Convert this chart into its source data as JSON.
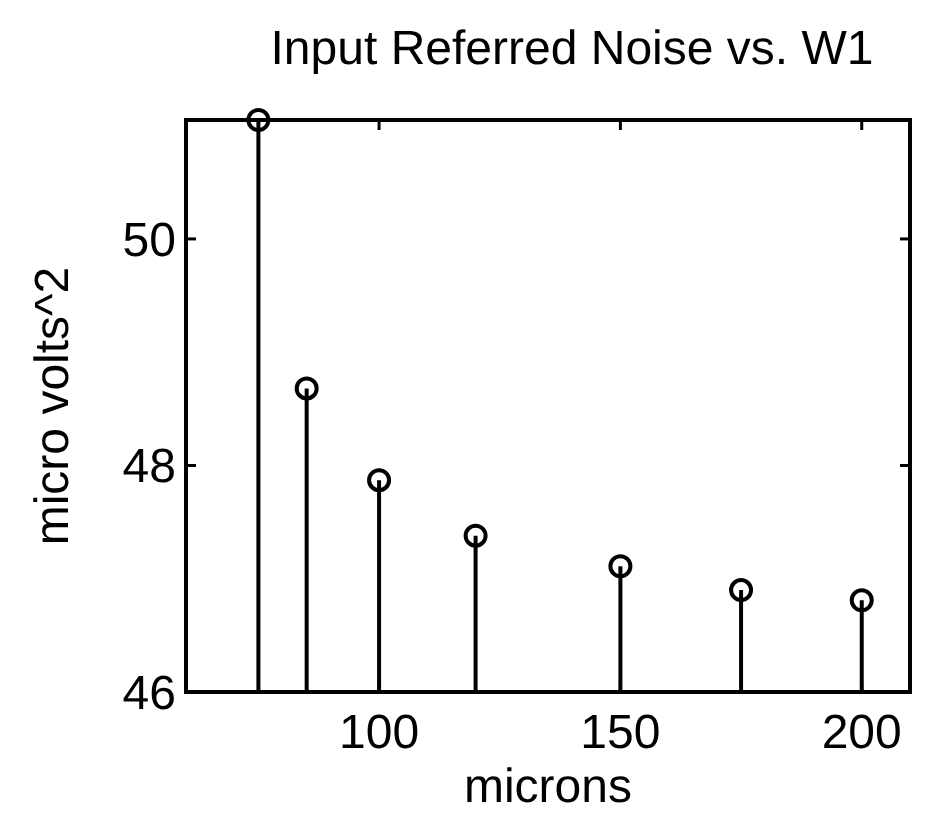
{
  "chart_data": {
    "type": "lollipop",
    "title": "Input Referred Noise vs. W1",
    "xlabel": "microns",
    "ylabel": "micro volts^2",
    "x": [
      75,
      85,
      100,
      120,
      150,
      175,
      200
    ],
    "values": [
      51.05,
      48.68,
      47.87,
      47.38,
      47.11,
      46.9,
      46.81
    ],
    "color": "#000000",
    "marker": "circle",
    "xlim": [
      60,
      210
    ],
    "xticks": [
      100,
      150,
      200
    ],
    "ylim": [
      46,
      51.05
    ],
    "yticks": [
      46,
      48,
      50
    ],
    "grid": false
  }
}
